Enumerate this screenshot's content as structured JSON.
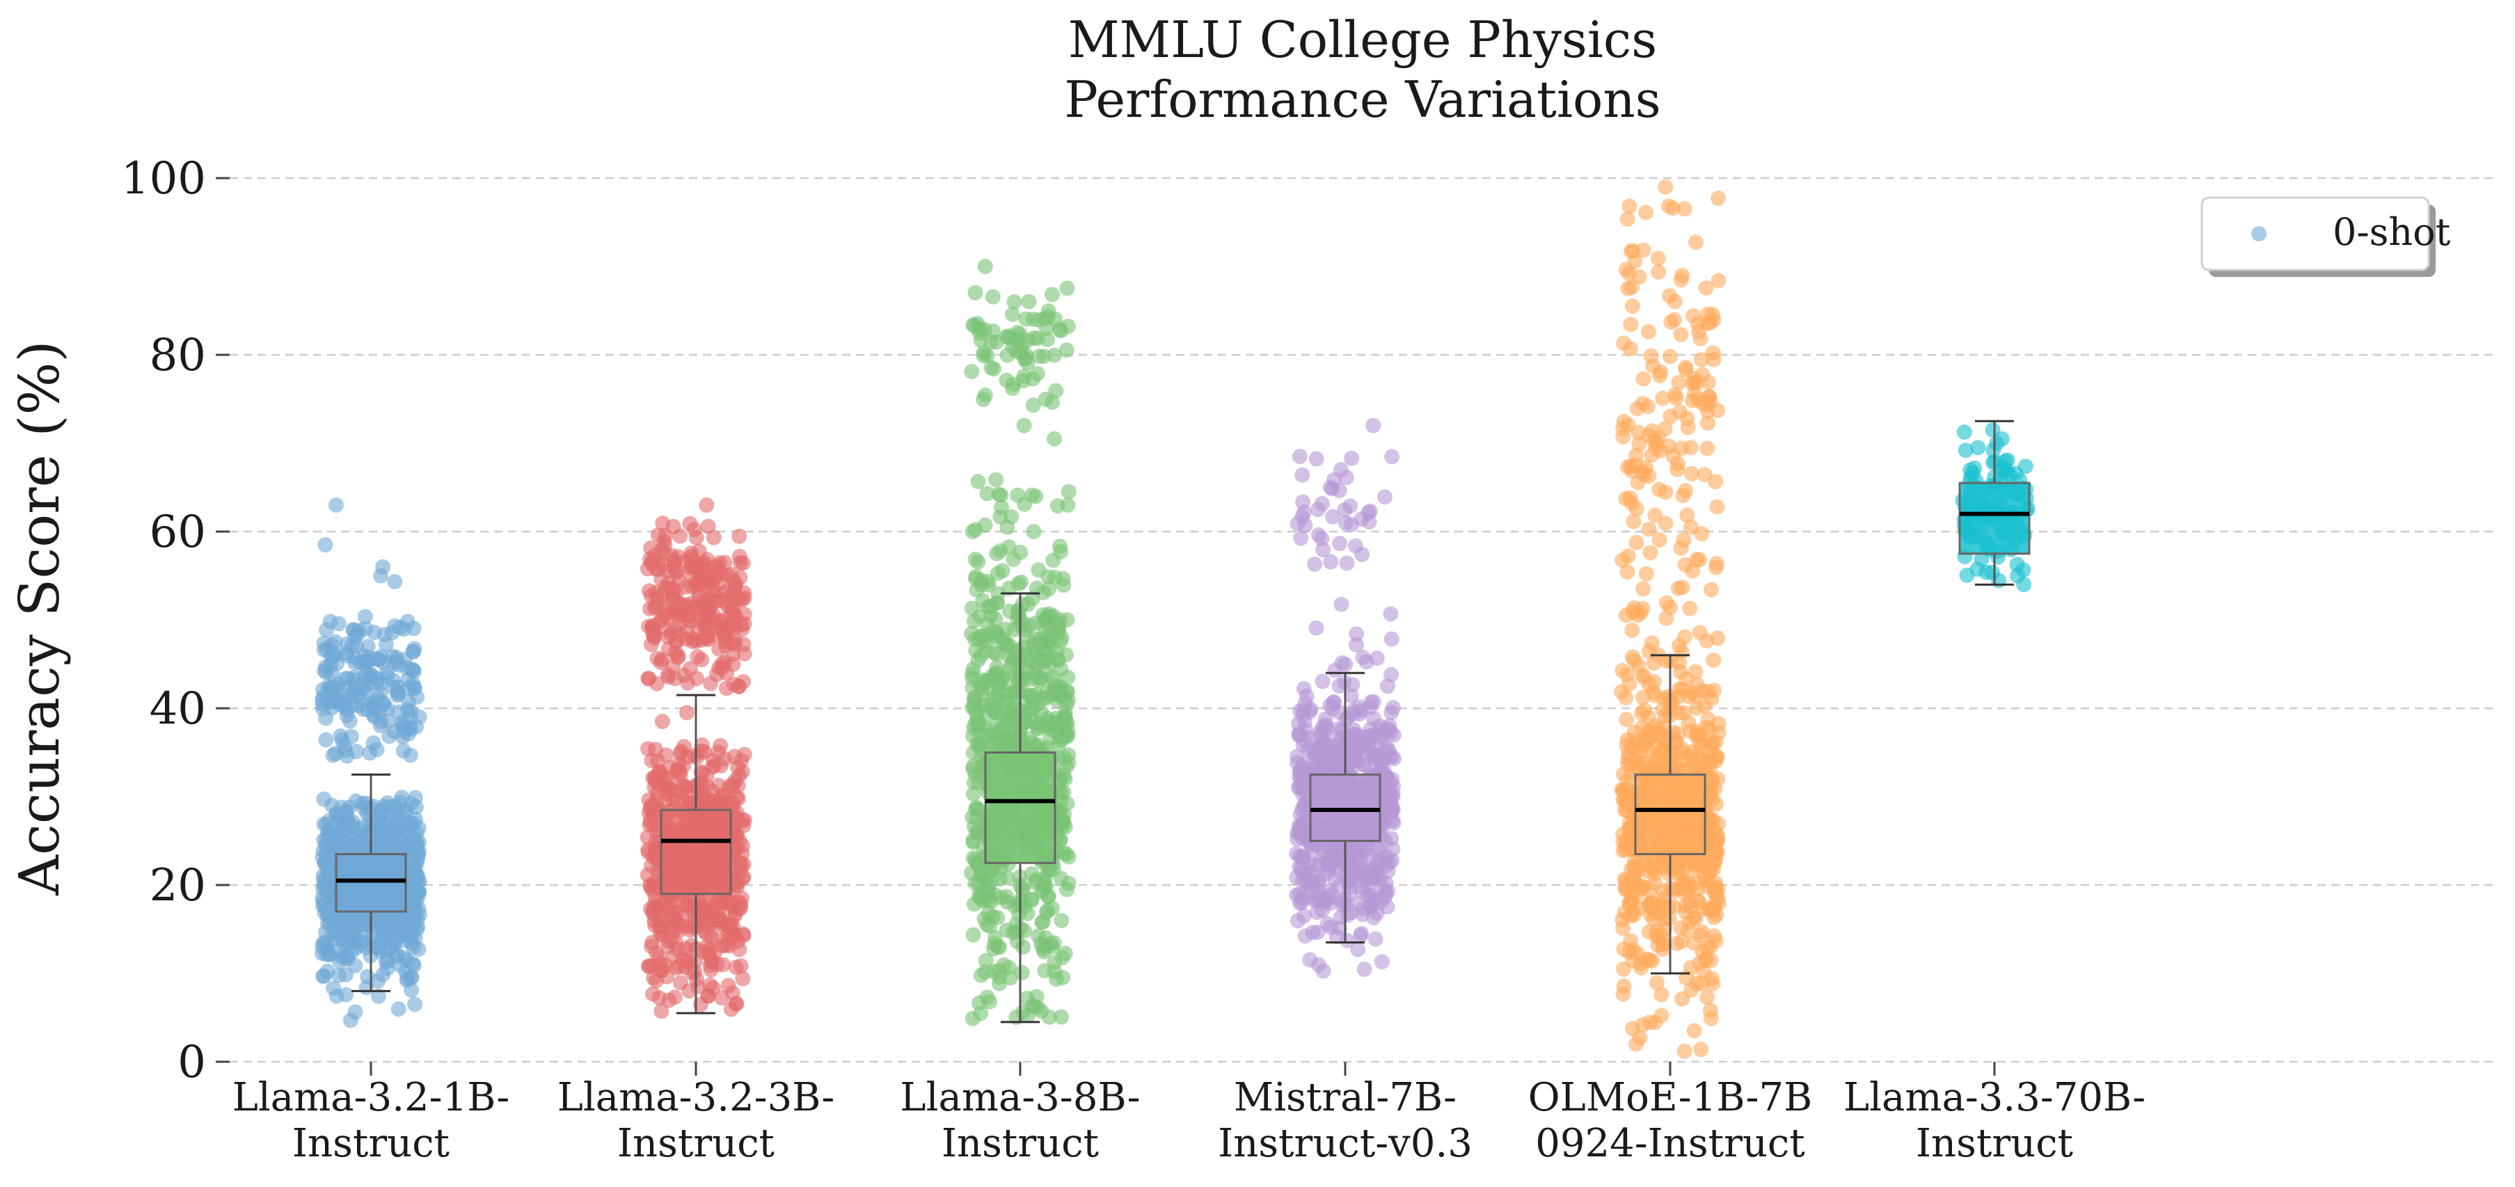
{
  "chart_data": {
    "type": "scatter",
    "title": [
      "MMLU College Physics",
      "Performance Variations"
    ],
    "ylabel": "Accuracy Score (%)",
    "xlabel": "",
    "ylim": [
      0,
      100
    ],
    "yticks": [
      0,
      20,
      40,
      60,
      80,
      100
    ],
    "grid": true,
    "legend": {
      "placement": "top-right",
      "entries": [
        "0-shot"
      ]
    },
    "categories": [
      [
        "Llama-3.2-1B-",
        "Instruct"
      ],
      [
        "Llama-3.2-3B-",
        "Instruct"
      ],
      [
        "Llama-3-8B-",
        "Instruct"
      ],
      [
        "Mistral-7B-",
        "Instruct-v0.3"
      ],
      [
        "OLMoE-1B-7B",
        "0924-Instruct"
      ],
      [
        "Llama-3.3-70B-",
        "Instruct"
      ]
    ],
    "series": [
      {
        "color": "#6fa8d6",
        "box": {
          "whisker_low": 8,
          "q1": 17,
          "median": 20.5,
          "q3": 23.5,
          "whisker_high": 32.5
        },
        "clusters": [
          {
            "min": 2,
            "max": 30,
            "center": 20,
            "spread": 5,
            "count": 700
          },
          {
            "min": 34,
            "max": 55,
            "center": 43,
            "spread": 4,
            "count": 180
          }
        ],
        "extra_points": [
          63,
          58.5,
          56,
          47,
          40.5,
          6.5
        ]
      },
      {
        "color": "#e36a6a",
        "box": {
          "whisker_low": 5.5,
          "q1": 19,
          "median": 25,
          "q3": 28.5,
          "whisker_high": 41.5
        },
        "clusters": [
          {
            "min": 5.5,
            "max": 36,
            "center": 22,
            "spread": 7,
            "count": 600
          },
          {
            "min": 42,
            "max": 61,
            "center": 52,
            "spread": 4.5,
            "count": 250
          }
        ],
        "extra_points": [
          63,
          39.5,
          38.5
        ]
      },
      {
        "color": "#79c374",
        "box": {
          "whisker_low": 4.5,
          "q1": 22.5,
          "median": 29.5,
          "q3": 35,
          "whisker_high": 53
        },
        "clusters": [
          {
            "min": 4.5,
            "max": 66,
            "center": 33,
            "spread": 13,
            "count": 750
          },
          {
            "min": 74,
            "max": 88,
            "center": 81,
            "spread": 3,
            "count": 70
          }
        ],
        "extra_points": [
          90,
          72,
          70.5,
          63,
          54
        ]
      },
      {
        "color": "#b698d6",
        "box": {
          "whisker_low": 13.5,
          "q1": 25,
          "median": 28.5,
          "q3": 32.5,
          "whisker_high": 44
        },
        "clusters": [
          {
            "min": 10,
            "max": 56,
            "center": 29,
            "spread": 7,
            "count": 650
          },
          {
            "min": 56,
            "max": 69,
            "center": 62,
            "spread": 3.5,
            "count": 35
          }
        ],
        "extra_points": [
          72,
          68.5,
          67,
          65
        ]
      },
      {
        "color": "#ffaa5c",
        "box": {
          "whisker_low": 10,
          "q1": 23.5,
          "median": 28.5,
          "q3": 32.5,
          "whisker_high": 46
        },
        "clusters": [
          {
            "min": 1,
            "max": 50,
            "center": 27,
            "spread": 9,
            "count": 600
          },
          {
            "min": 50,
            "max": 98,
            "center": 72,
            "spread": 13,
            "count": 160
          }
        ],
        "extra_points": [
          99,
          74.5,
          3.5,
          2
        ]
      },
      {
        "color": "#19bfcf",
        "box": {
          "whisker_low": 54,
          "q1": 57.5,
          "median": 62,
          "q3": 65.5,
          "whisker_high": 72.5
        },
        "clusters": [
          {
            "min": 54,
            "max": 72.5,
            "center": 62,
            "spread": 4,
            "count": 110
          }
        ],
        "extra_points": [
          71.5,
          69.5,
          54
        ]
      }
    ]
  }
}
